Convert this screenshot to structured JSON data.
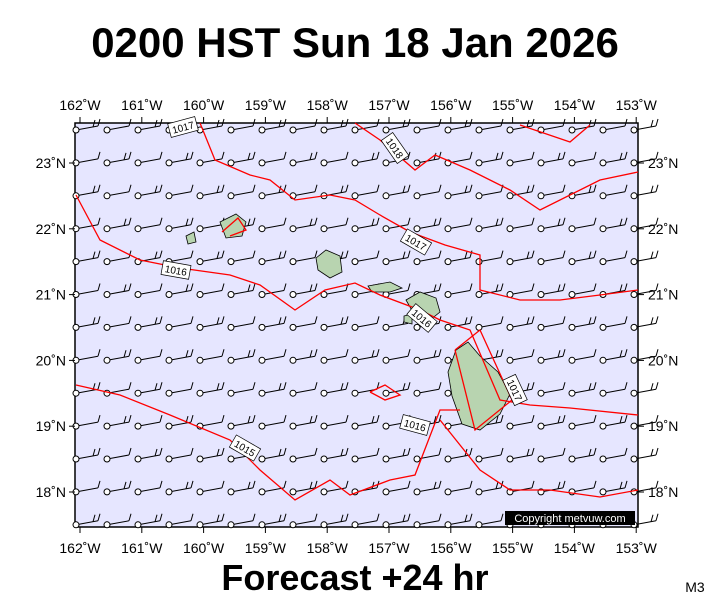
{
  "header": {
    "title": "0200 HST Sun 18 Jan 2026"
  },
  "footer": {
    "forecast": "Forecast +24 hr",
    "code": "M3"
  },
  "map": {
    "lon_labels": [
      "162˚W",
      "161˚W",
      "160˚W",
      "159˚W",
      "158˚W",
      "157˚W",
      "156˚W",
      "155˚W",
      "154˚W",
      "153˚W"
    ],
    "lat_labels": [
      "23˚N",
      "22˚N",
      "21˚N",
      "20˚N",
      "19˚N",
      "18˚N"
    ],
    "isobar_labels": [
      "1017",
      "1018",
      "1017",
      "1016",
      "1016",
      "1017",
      "1016",
      "1015"
    ],
    "copyright": "Copyright metvuw.com"
  }
}
